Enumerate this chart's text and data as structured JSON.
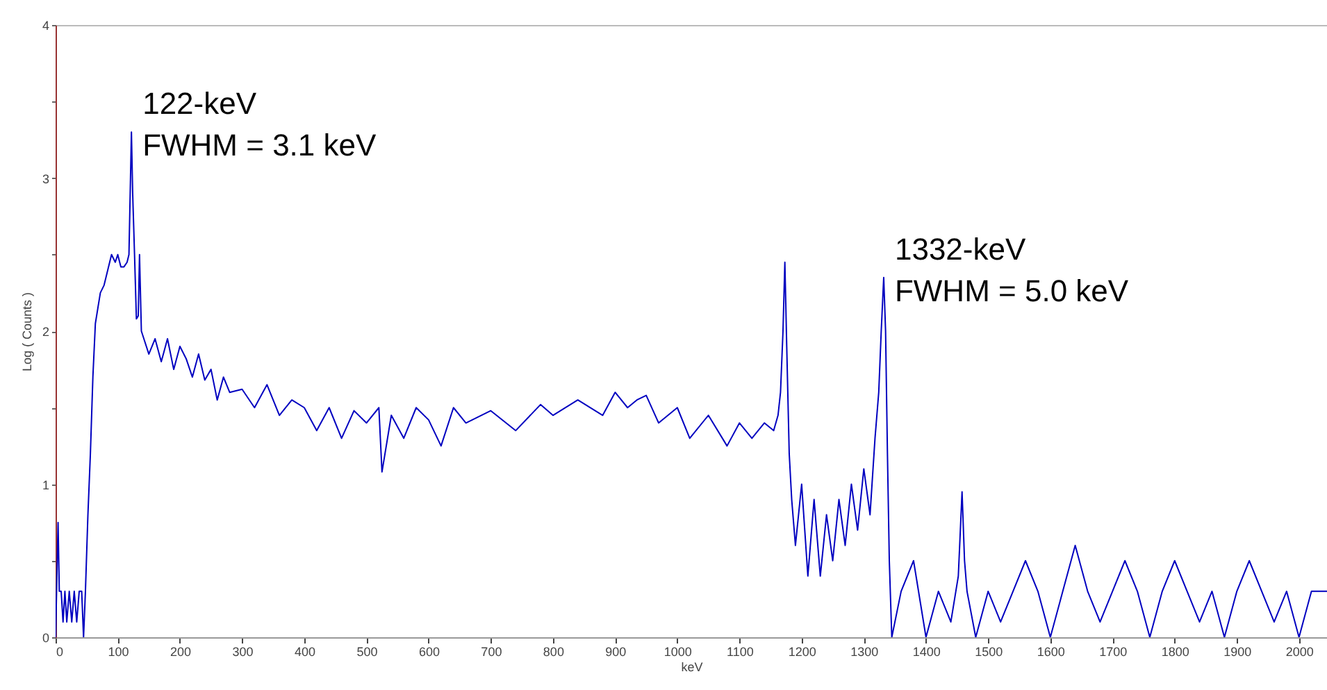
{
  "chart_data": {
    "type": "line",
    "xlabel": "keV",
    "ylabel": "Log ( Counts )",
    "xlim": [
      0,
      2045
    ],
    "ylim": [
      0,
      4
    ],
    "xticks": [
      0,
      100,
      200,
      300,
      400,
      500,
      600,
      700,
      800,
      900,
      1000,
      1100,
      1200,
      1300,
      1400,
      1500,
      1600,
      1700,
      1800,
      1900,
      2000
    ],
    "yticks": [
      0,
      {
        "value": 0.5,
        "label": null
      },
      1,
      {
        "value": 1.5,
        "label": null
      },
      2,
      {
        "value": 2.5,
        "label": null
      },
      3,
      {
        "value": 3.5,
        "label": null
      },
      4
    ],
    "grid": false,
    "annotations": [
      {
        "text": "122-keV\nFWHM = 3.1 keV",
        "x": 122,
        "y": 3.3
      },
      {
        "text": "1332-keV\nFWHM = 5.0 keV",
        "x": 1332,
        "y": 2.35
      }
    ],
    "series": [
      {
        "color": "#0000c0",
        "x": [
          0,
          4,
          6,
          9,
          12,
          15,
          18,
          22,
          26,
          30,
          34,
          38,
          42,
          45,
          48,
          52,
          56,
          60,
          64,
          68,
          72,
          78,
          84,
          90,
          96,
          100,
          105,
          110,
          115,
          118,
          120,
          122,
          124,
          127,
          130,
          133,
          135,
          138,
          142,
          150,
          160,
          170,
          180,
          190,
          200,
          210,
          220,
          230,
          240,
          250,
          260,
          270,
          280,
          300,
          320,
          340,
          360,
          380,
          400,
          420,
          440,
          460,
          480,
          500,
          520,
          525,
          540,
          560,
          580,
          600,
          620,
          640,
          660,
          700,
          740,
          780,
          800,
          840,
          880,
          900,
          920,
          935,
          950,
          970,
          1000,
          1020,
          1050,
          1080,
          1100,
          1120,
          1140,
          1155,
          1162,
          1166,
          1170,
          1173,
          1176,
          1180,
          1184,
          1190,
          1200,
          1210,
          1220,
          1230,
          1240,
          1250,
          1260,
          1270,
          1280,
          1290,
          1300,
          1310,
          1318,
          1324,
          1328,
          1332,
          1335,
          1338,
          1341,
          1345,
          1360,
          1380,
          1400,
          1420,
          1440,
          1452,
          1458,
          1462,
          1466,
          1480,
          1500,
          1520,
          1540,
          1560,
          1580,
          1600,
          1620,
          1640,
          1660,
          1680,
          1700,
          1720,
          1740,
          1760,
          1780,
          1800,
          1820,
          1840,
          1860,
          1880,
          1900,
          1920,
          1940,
          1960,
          1980,
          2000,
          2020,
          2045
        ],
        "values": [
          0,
          0.75,
          0.3,
          0.3,
          0.1,
          0.3,
          0.1,
          0.3,
          0.1,
          0.3,
          0.1,
          0.3,
          0.3,
          0,
          0.3,
          0.8,
          1.2,
          1.7,
          2.05,
          2.15,
          2.25,
          2.3,
          2.4,
          2.5,
          2.45,
          2.5,
          2.42,
          2.42,
          2.45,
          2.5,
          2.9,
          3.3,
          2.9,
          2.5,
          2.08,
          2.1,
          2.5,
          2.0,
          1.95,
          1.85,
          1.95,
          1.8,
          1.95,
          1.75,
          1.9,
          1.82,
          1.7,
          1.85,
          1.68,
          1.75,
          1.55,
          1.7,
          1.6,
          1.62,
          1.5,
          1.65,
          1.45,
          1.55,
          1.5,
          1.35,
          1.5,
          1.3,
          1.48,
          1.4,
          1.5,
          1.08,
          1.45,
          1.3,
          1.5,
          1.42,
          1.25,
          1.5,
          1.4,
          1.48,
          1.35,
          1.52,
          1.45,
          1.55,
          1.45,
          1.6,
          1.5,
          1.55,
          1.58,
          1.4,
          1.5,
          1.3,
          1.45,
          1.25,
          1.4,
          1.3,
          1.4,
          1.35,
          1.45,
          1.6,
          2.0,
          2.45,
          1.9,
          1.2,
          0.9,
          0.6,
          1.0,
          0.4,
          0.9,
          0.4,
          0.8,
          0.5,
          0.9,
          0.6,
          1.0,
          0.7,
          1.1,
          0.8,
          1.3,
          1.6,
          2.0,
          2.35,
          2.0,
          1.2,
          0.5,
          0,
          0.3,
          0.5,
          0,
          0.3,
          0.1,
          0.4,
          0.95,
          0.5,
          0.3,
          0,
          0.3,
          0.1,
          0.3,
          0.5,
          0.3,
          0,
          0.3,
          0.6,
          0.3,
          0.1,
          0.3,
          0.5,
          0.3,
          0,
          0.3,
          0.5,
          0.3,
          0.1,
          0.3,
          0,
          0.3,
          0.5,
          0.3,
          0.1,
          0.3,
          0,
          0.3,
          0.3
        ]
      }
    ]
  }
}
